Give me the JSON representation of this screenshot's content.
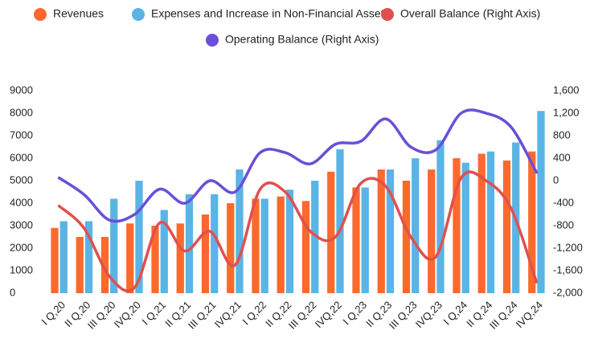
{
  "chart_data": {
    "type": "bar_line",
    "categories": [
      "I Q,20",
      "II Q,20",
      "III Q,20",
      "IVQ,20",
      "I Q,21",
      "II Q,21",
      "III Q,21",
      "IVQ,21",
      "I Q,22",
      "II Q,22",
      "III Q,22",
      "IVQ,22",
      "I Q,23",
      "II Q,23",
      "III Q,23",
      "IVQ,23",
      "I Q,24",
      "II Q,24",
      "III Q,24",
      "IVQ,24"
    ],
    "series": [
      {
        "name": "Revenues",
        "color": "#fb6a2c",
        "kind": "bar",
        "values": [
          2900,
          2500,
          2500,
          3100,
          3000,
          3100,
          3500,
          4000,
          4200,
          4300,
          4100,
          5400,
          4700,
          5500,
          5000,
          5500,
          6000,
          6200,
          5900,
          6300
        ]
      },
      {
        "name": "Expenses and Increase in Non-Financial Assets",
        "color": "#5ab4e5",
        "kind": "bar",
        "values": [
          3200,
          3200,
          4200,
          5000,
          3700,
          4400,
          4400,
          5500,
          4200,
          4600,
          5000,
          6400,
          4700,
          5500,
          6000,
          6800,
          5800,
          6300,
          6700,
          8100
        ]
      },
      {
        "name": "Overall Balance (Right Axis)",
        "color": "#e0504f",
        "kind": "line",
        "axis": "y2",
        "values": [
          -450,
          -850,
          -1700,
          -1900,
          -750,
          -1250,
          -900,
          -1500,
          -150,
          -200,
          -900,
          -1000,
          -50,
          -100,
          -1000,
          -1350,
          50,
          0,
          -500,
          -1800
        ]
      },
      {
        "name": "Operating Balance (Right Axis)",
        "color": "#6a4fd8",
        "kind": "line",
        "axis": "y2",
        "values": [
          50,
          -250,
          -700,
          -600,
          -150,
          -400,
          0,
          -200,
          500,
          500,
          300,
          650,
          700,
          1100,
          600,
          550,
          1200,
          1200,
          950,
          150
        ]
      }
    ],
    "ylim": [
      0,
      9000
    ],
    "yticks": [
      0,
      1000,
      2000,
      3000,
      4000,
      5000,
      6000,
      7000,
      8000,
      9000
    ],
    "y2lim": [
      -2000,
      1600
    ],
    "y2ticks": [
      {
        "value": -2000,
        "label": "-2,000"
      },
      {
        "value": -1600,
        "label": "-1,600"
      },
      {
        "value": -1200,
        "label": "-1,200"
      },
      {
        "value": -800,
        "label": "-800"
      },
      -400,
      0,
      400,
      800,
      {
        "value": 1200,
        "label": "1,200"
      },
      {
        "value": 1600,
        "label": "1,600"
      }
    ],
    "legend": "top"
  }
}
